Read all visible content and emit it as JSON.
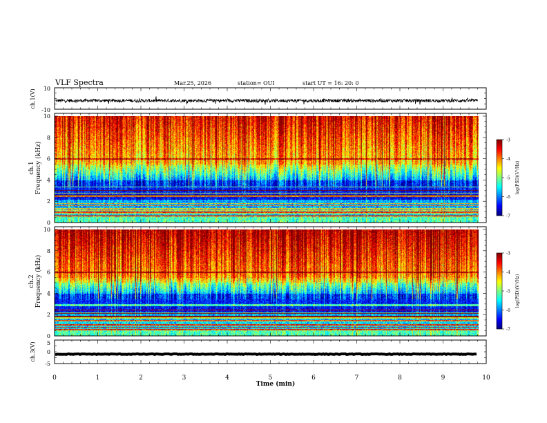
{
  "header": {
    "title": "VLF Spectra",
    "date": "Mar.25, 2026",
    "station": "station= OUI",
    "start": "start  UT  =   16: 20: 0"
  },
  "chart_data": [
    {
      "type": "line",
      "name": "waveform-ch1",
      "ylabel": "ch.1(V)",
      "ylim": [
        -10,
        10
      ],
      "yticks": [
        "10",
        "-10"
      ],
      "xlim": [
        0,
        10
      ],
      "baseline": -2,
      "spread": 1.5
    },
    {
      "type": "heatmap",
      "name": "spectrogram-ch1",
      "ylabel_lines": [
        "ch.1",
        "Frequency  (kHz)"
      ],
      "ylim": [
        0,
        10
      ],
      "yticks": [
        "0",
        "2",
        "4",
        "6",
        "8",
        "10"
      ],
      "xlim": [
        0,
        9.8
      ],
      "colorbar": {
        "label": "log(PSD)(V²/Hz)",
        "min": -7,
        "max": -3,
        "ticks": [
          "-3",
          "-4",
          "-5",
          "-6",
          "-7"
        ]
      }
    },
    {
      "type": "heatmap",
      "name": "spectrogram-ch2",
      "ylabel_lines": [
        "ch.2",
        "Frequency  (kHz)"
      ],
      "ylim": [
        0,
        10
      ],
      "yticks": [
        "0",
        "2",
        "4",
        "6",
        "8",
        "10"
      ],
      "xlim": [
        0,
        9.8
      ],
      "colorbar": {
        "label": "log(PSD)(V²/Hz)",
        "min": -7,
        "max": -3,
        "ticks": [
          "-3",
          "-4",
          "-5",
          "-6",
          "-7"
        ]
      }
    },
    {
      "type": "line",
      "name": "waveform-ch3",
      "ylabel": "ch.3(V)",
      "ylim": [
        -5,
        5
      ],
      "yticks": [
        "5",
        "0",
        "-5"
      ],
      "xlim": [
        0,
        10
      ],
      "baseline": -1,
      "spread": 0.3
    }
  ],
  "xaxis": {
    "label": "Time  (min)",
    "ticks": [
      "0",
      "1",
      "2",
      "3",
      "4",
      "5",
      "6",
      "7",
      "8",
      "9",
      "10"
    ]
  }
}
